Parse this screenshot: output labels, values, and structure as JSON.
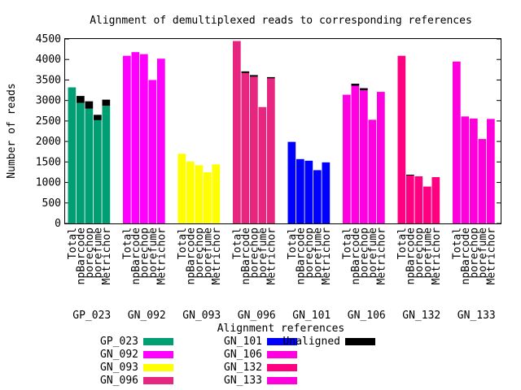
{
  "chart_data": {
    "type": "bar",
    "stacked": true,
    "title": "Alignment of demultiplexed reads to corresponding references",
    "xlabel": "Alignment references",
    "ylabel": "Number of reads",
    "ylim": [
      0,
      4500
    ],
    "yticks": [
      0,
      500,
      1000,
      1500,
      2000,
      2500,
      3000,
      3500,
      4000,
      4500
    ],
    "grid": false,
    "legend_position": "bottom-left",
    "methods": [
      "Total",
      "npBarcode",
      "porechop",
      "porefume",
      "Metrichor"
    ],
    "groups": [
      {
        "name": "GP_023",
        "color": "#009e73",
        "values": [
          {
            "total": 3320,
            "unaligned": 0
          },
          {
            "total": 3110,
            "unaligned": 170
          },
          {
            "total": 2980,
            "unaligned": 180
          },
          {
            "total": 2650,
            "unaligned": 130
          },
          {
            "total": 3020,
            "unaligned": 150
          }
        ]
      },
      {
        "name": "GN_092",
        "color": "#ff00ff",
        "values": [
          {
            "total": 4090,
            "unaligned": 0
          },
          {
            "total": 4180,
            "unaligned": 0
          },
          {
            "total": 4130,
            "unaligned": 0
          },
          {
            "total": 3500,
            "unaligned": 0
          },
          {
            "total": 4020,
            "unaligned": 0
          }
        ]
      },
      {
        "name": "GN_093",
        "color": "#ffff00",
        "values": [
          {
            "total": 1700,
            "unaligned": 0
          },
          {
            "total": 1510,
            "unaligned": 0
          },
          {
            "total": 1420,
            "unaligned": 0
          },
          {
            "total": 1250,
            "unaligned": 0
          },
          {
            "total": 1440,
            "unaligned": 0
          }
        ]
      },
      {
        "name": "GN_096",
        "color": "#e6267f",
        "values": [
          {
            "total": 4450,
            "unaligned": 0
          },
          {
            "total": 3710,
            "unaligned": 40
          },
          {
            "total": 3620,
            "unaligned": 40
          },
          {
            "total": 2840,
            "unaligned": 0
          },
          {
            "total": 3570,
            "unaligned": 30
          }
        ]
      },
      {
        "name": "GN_101",
        "color": "#0000ff",
        "values": [
          {
            "total": 1990,
            "unaligned": 0
          },
          {
            "total": 1570,
            "unaligned": 0
          },
          {
            "total": 1530,
            "unaligned": 0
          },
          {
            "total": 1300,
            "unaligned": 0
          },
          {
            "total": 1490,
            "unaligned": 0
          }
        ]
      },
      {
        "name": "GN_106",
        "color": "#ff00e0",
        "values": [
          {
            "total": 3140,
            "unaligned": 0
          },
          {
            "total": 3410,
            "unaligned": 50
          },
          {
            "total": 3300,
            "unaligned": 50
          },
          {
            "total": 2530,
            "unaligned": 0
          },
          {
            "total": 3210,
            "unaligned": 0
          }
        ]
      },
      {
        "name": "GN_132",
        "color": "#ff0080",
        "values": [
          {
            "total": 4090,
            "unaligned": 0
          },
          {
            "total": 1190,
            "unaligned": 20
          },
          {
            "total": 1150,
            "unaligned": 0
          },
          {
            "total": 900,
            "unaligned": 0
          },
          {
            "total": 1130,
            "unaligned": 0
          }
        ]
      },
      {
        "name": "GN_133",
        "color": "#ff00dd",
        "values": [
          {
            "total": 3950,
            "unaligned": 0
          },
          {
            "total": 2610,
            "unaligned": 0
          },
          {
            "total": 2560,
            "unaligned": 0
          },
          {
            "total": 2060,
            "unaligned": 0
          },
          {
            "total": 2550,
            "unaligned": 0
          }
        ]
      }
    ],
    "unaligned": {
      "name": "Unaligned",
      "color": "#000000"
    }
  }
}
